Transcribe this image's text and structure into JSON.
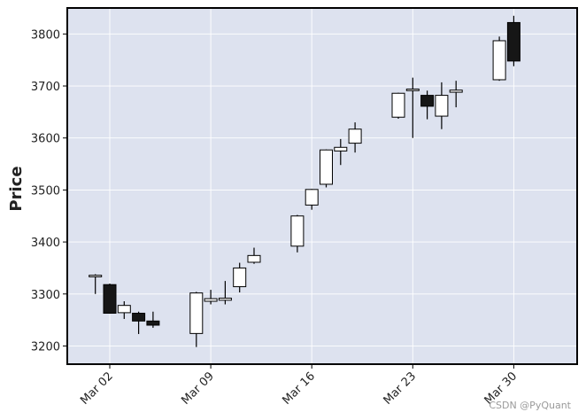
{
  "chart_data": {
    "type": "candlestick",
    "title": "",
    "xlabel": "",
    "ylabel": "Price",
    "ylim": [
      3165,
      3850
    ],
    "grid": true,
    "legend": "none",
    "colors": {
      "background": "#dde2ef",
      "grid": "#ffffff",
      "up_fill": "#ffffff",
      "down_fill": "#161616",
      "edge": "#000000",
      "frame": "#000000"
    },
    "yticks": [
      3200,
      3300,
      3400,
      3500,
      3600,
      3700,
      3800
    ],
    "xticks": [
      {
        "date": "2021-03-02",
        "label": "Mar 02"
      },
      {
        "date": "2021-03-09",
        "label": "Mar 09"
      },
      {
        "date": "2021-03-16",
        "label": "Mar 16"
      },
      {
        "date": "2021-03-23",
        "label": "Mar 23"
      },
      {
        "date": "2021-03-30",
        "label": "Mar 30"
      }
    ],
    "candles": [
      {
        "date": "2021-03-01",
        "open": 3333,
        "high": 3338,
        "low": 3300,
        "close": 3336
      },
      {
        "date": "2021-03-02",
        "open": 3318,
        "high": 3320,
        "low": 3262,
        "close": 3263
      },
      {
        "date": "2021-03-03",
        "open": 3264,
        "high": 3286,
        "low": 3252,
        "close": 3278
      },
      {
        "date": "2021-03-04",
        "open": 3263,
        "high": 3266,
        "low": 3223,
        "close": 3248
      },
      {
        "date": "2021-03-05",
        "open": 3248,
        "high": 3266,
        "low": 3235,
        "close": 3240
      },
      {
        "date": "2021-03-08",
        "open": 3224,
        "high": 3304,
        "low": 3198,
        "close": 3302
      },
      {
        "date": "2021-03-09",
        "open": 3286,
        "high": 3308,
        "low": 3280,
        "close": 3291
      },
      {
        "date": "2021-03-10",
        "open": 3288,
        "high": 3325,
        "low": 3280,
        "close": 3292
      },
      {
        "date": "2021-03-11",
        "open": 3314,
        "high": 3360,
        "low": 3303,
        "close": 3350
      },
      {
        "date": "2021-03-12",
        "open": 3361,
        "high": 3389,
        "low": 3358,
        "close": 3374
      },
      {
        "date": "2021-03-15",
        "open": 3392,
        "high": 3452,
        "low": 3380,
        "close": 3450
      },
      {
        "date": "2021-03-16",
        "open": 3471,
        "high": 3502,
        "low": 3462,
        "close": 3501
      },
      {
        "date": "2021-03-17",
        "open": 3511,
        "high": 3578,
        "low": 3505,
        "close": 3577
      },
      {
        "date": "2021-03-18",
        "open": 3575,
        "high": 3598,
        "low": 3548,
        "close": 3582
      },
      {
        "date": "2021-03-19",
        "open": 3590,
        "high": 3630,
        "low": 3572,
        "close": 3617
      },
      {
        "date": "2021-03-22",
        "open": 3640,
        "high": 3687,
        "low": 3637,
        "close": 3686
      },
      {
        "date": "2021-03-23",
        "open": 3691,
        "high": 3716,
        "low": 3600,
        "close": 3694
      },
      {
        "date": "2021-03-24",
        "open": 3682,
        "high": 3691,
        "low": 3636,
        "close": 3661
      },
      {
        "date": "2021-03-25",
        "open": 3642,
        "high": 3707,
        "low": 3617,
        "close": 3682
      },
      {
        "date": "2021-03-26",
        "open": 3688,
        "high": 3710,
        "low": 3659,
        "close": 3692
      },
      {
        "date": "2021-03-29",
        "open": 3712,
        "high": 3795,
        "low": 3710,
        "close": 3787
      },
      {
        "date": "2021-03-30",
        "open": 3822,
        "high": 3835,
        "low": 3738,
        "close": 3748
      }
    ]
  },
  "watermark": "CSDN @PyQuant"
}
